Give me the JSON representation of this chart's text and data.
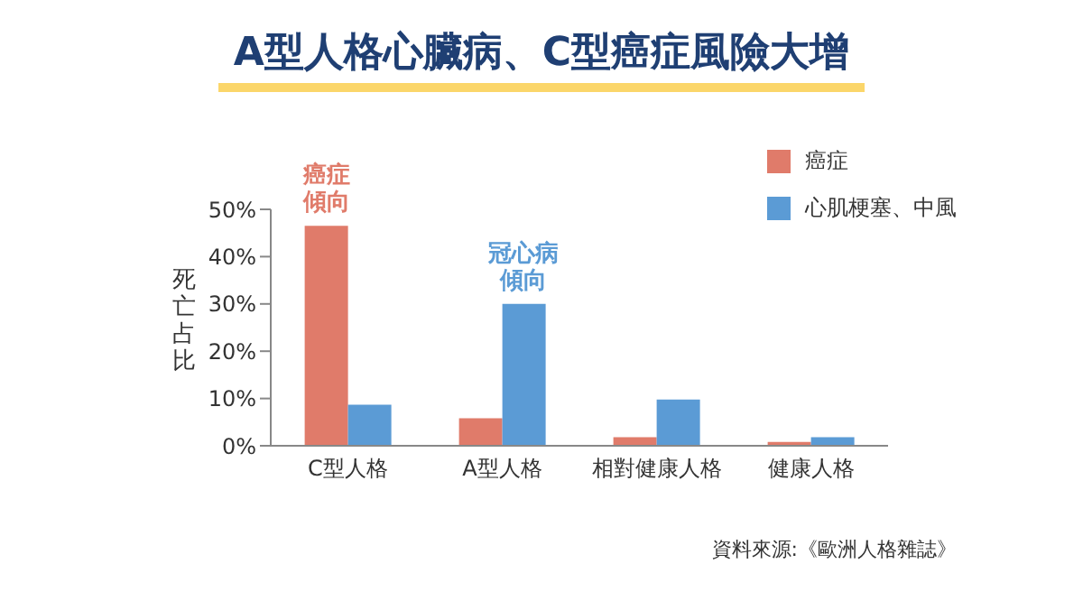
{
  "chart_data": {
    "type": "bar",
    "title": "A型人格心臟病、C型癌症風險大增",
    "categories": [
      "C型人格",
      "A型人格",
      "相對健康人格",
      "健康人格"
    ],
    "series": [
      {
        "name": "癌症",
        "color": "#e07b6a",
        "values": [
          46.5,
          5.8,
          1.8,
          0.8
        ]
      },
      {
        "name": "心肌梗塞、中風",
        "color": "#5b9bd5",
        "values": [
          8.7,
          30,
          9.8,
          1.8
        ]
      }
    ],
    "ylabel": "死亡占比",
    "ylim": [
      0,
      50
    ],
    "yticks": [
      {
        "value": 0,
        "label": "0%"
      },
      {
        "value": 10,
        "label": "10%"
      },
      {
        "value": 20,
        "label": "20%"
      },
      {
        "value": 30,
        "label": "30%"
      },
      {
        "value": 40,
        "label": "40%"
      },
      {
        "value": 50,
        "label": "50%"
      }
    ],
    "grid": false,
    "legend": "top right",
    "annotations": [
      {
        "text": "癌症傾向",
        "x": "C型人格",
        "y": 46.5
      },
      {
        "text": "冠心病傾向",
        "x": "A型人格",
        "y": 30
      },
      "資料來源:《歐洲人格雜誌》"
    ]
  }
}
